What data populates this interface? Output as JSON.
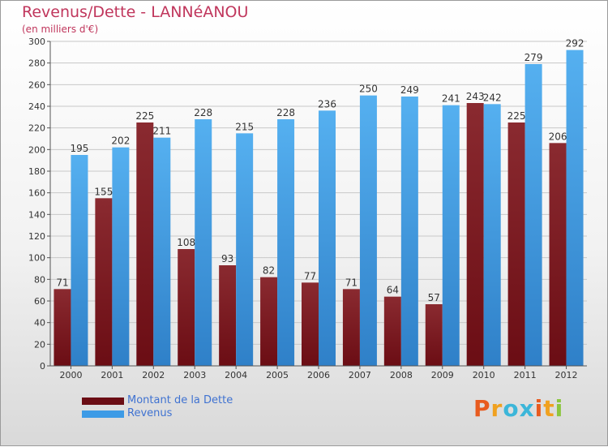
{
  "title": "Revenus/Dette - LANNéANOU",
  "subtitle": "(en milliers d'€)",
  "logo": {
    "text": "Proxiti",
    "colors": [
      "#e85b1f",
      "#f0a11f",
      "#3cb6d9",
      "#3cb6d9",
      "#e85b1f",
      "#f0a11f",
      "#8cc63f"
    ]
  },
  "legend": [
    {
      "label": "Montant de la Dette",
      "color": "#6b0d14"
    },
    {
      "label": "Revenus",
      "color": "#3d9be6"
    }
  ],
  "chart_data": {
    "type": "bar",
    "categories": [
      "2000",
      "2001",
      "2002",
      "2003",
      "2004",
      "2005",
      "2006",
      "2007",
      "2008",
      "2009",
      "2010",
      "2011",
      "2012"
    ],
    "series": [
      {
        "name": "Montant de la Dette",
        "color": "#6b0d14",
        "values": [
          71,
          155,
          225,
          108,
          93,
          82,
          77,
          71,
          64,
          57,
          243,
          225,
          206
        ]
      },
      {
        "name": "Revenus",
        "color": "#3d9be6",
        "values": [
          195,
          202,
          211,
          228,
          215,
          228,
          236,
          250,
          249,
          241,
          242,
          279,
          292
        ]
      }
    ],
    "ylim": [
      0,
      300
    ],
    "yticks": [
      0,
      20,
      40,
      60,
      80,
      100,
      120,
      140,
      160,
      180,
      200,
      220,
      240,
      260,
      280,
      300
    ],
    "grid": true,
    "data_labels": true,
    "legend_position": "bottom-left"
  }
}
